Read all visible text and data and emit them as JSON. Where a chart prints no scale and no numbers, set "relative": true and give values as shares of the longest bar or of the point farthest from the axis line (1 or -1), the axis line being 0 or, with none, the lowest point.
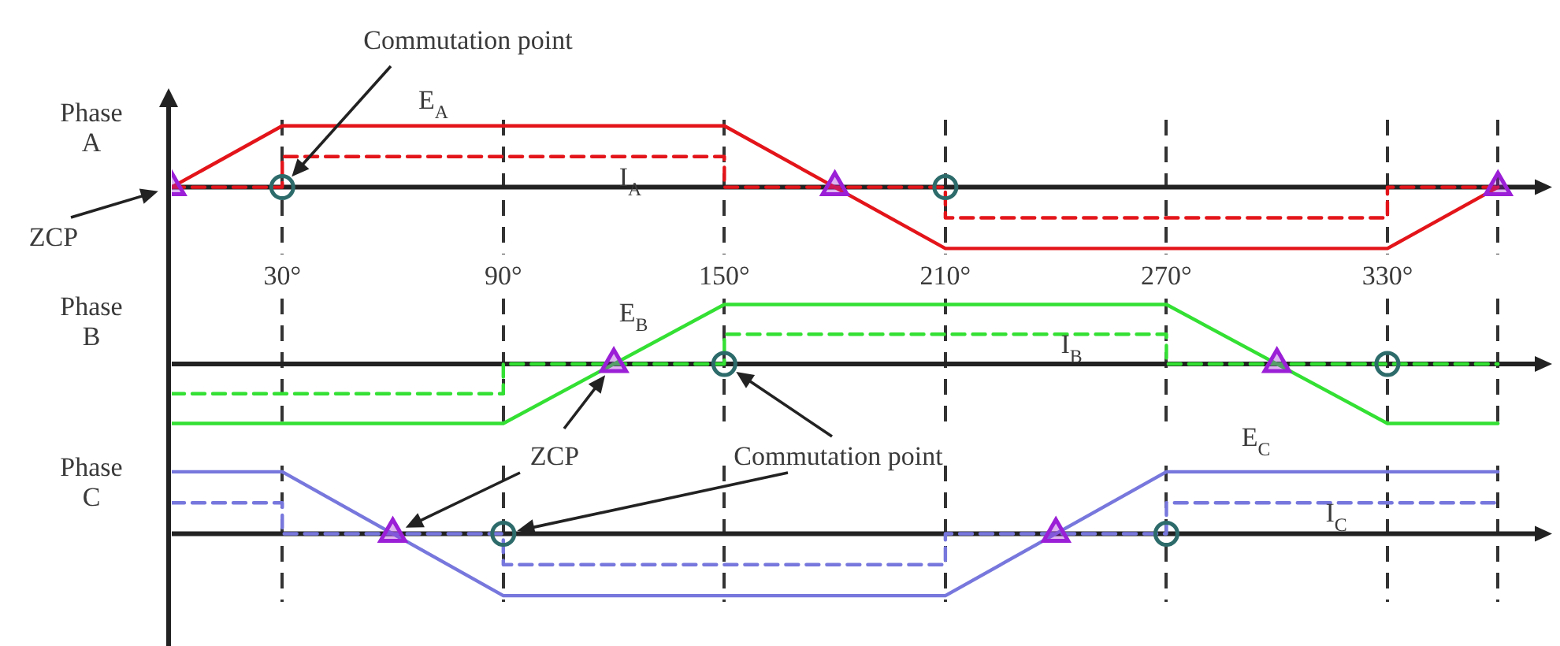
{
  "chart_data": [
    {
      "type": "line",
      "relative": true,
      "ylabel": "Phase A",
      "xlim": [
        0,
        370
      ],
      "xticks": [
        {
          "value": 30,
          "label": "30°"
        },
        {
          "value": 90,
          "label": "90°"
        },
        {
          "value": 150,
          "label": "150°"
        },
        {
          "value": 210,
          "label": "210°"
        },
        {
          "value": 270,
          "label": "270°"
        },
        {
          "value": 330,
          "label": "330°"
        },
        {
          "value": 360,
          "label": null
        }
      ],
      "grid": "x",
      "tick_labels": "x",
      "legend": false,
      "marker": "none",
      "series": [
        {
          "name": "E$_{A}$",
          "color": "#e3151a",
          "x": [
            0,
            30,
            150,
            210,
            330,
            360
          ],
          "values": [
            0,
            1,
            1,
            -1,
            -1,
            0
          ]
        },
        {
          "name": "I$_{A}$",
          "color": "#e3151a",
          "line_style": "dashed",
          "x": [
            0,
            30,
            30,
            150,
            150,
            210,
            210,
            330,
            330,
            360
          ],
          "values": [
            0,
            0,
            0.5,
            0.5,
            0,
            0,
            -0.5,
            -0.5,
            0,
            0
          ]
        },
        {
          "type": "scatter",
          "marker": "triangle",
          "color": "#9b1fd6",
          "x": [
            0,
            180,
            360
          ],
          "values": [
            0,
            0,
            0
          ]
        },
        {
          "type": "scatter",
          "marker": "circle",
          "color": "#2d6b6b",
          "x": [
            30,
            210
          ],
          "values": [
            0,
            0
          ]
        }
      ],
      "annotations": [
        "Commutation point",
        "ZCP"
      ]
    },
    {
      "type": "line",
      "relative": true,
      "ylabel": "Phase B",
      "xlim": [
        0,
        370
      ],
      "xticks": [
        {
          "value": 30,
          "label": null
        },
        {
          "value": 90,
          "label": null
        },
        {
          "value": 150,
          "label": null
        },
        {
          "value": 210,
          "label": null
        },
        {
          "value": 270,
          "label": null
        },
        {
          "value": 330,
          "label": null
        },
        {
          "value": 360,
          "label": null
        }
      ],
      "grid": "x",
      "tick_labels": false,
      "legend": false,
      "marker": "none",
      "series": [
        {
          "name": "E$_{B}$",
          "color": "#33e033",
          "x": [
            0,
            90,
            150,
            270,
            330,
            360
          ],
          "values": [
            -1,
            -1,
            1,
            1,
            -1,
            -1
          ]
        },
        {
          "name": "I$_{B}$",
          "color": "#33e033",
          "line_style": "dashed",
          "x": [
            0,
            90,
            90,
            150,
            150,
            270,
            270,
            360
          ],
          "values": [
            -0.5,
            -0.5,
            0,
            0,
            0.5,
            0.5,
            0,
            0
          ]
        },
        {
          "type": "scatter",
          "marker": "triangle",
          "color": "#9b1fd6",
          "x": [
            120,
            300
          ],
          "values": [
            0,
            0
          ]
        },
        {
          "type": "scatter",
          "marker": "circle",
          "color": "#2d6b6b",
          "x": [
            150,
            330
          ],
          "values": [
            0,
            0
          ]
        }
      ]
    },
    {
      "type": "line",
      "relative": true,
      "ylabel": "Phase C",
      "xlim": [
        0,
        370
      ],
      "xticks": [
        {
          "value": 30,
          "label": null
        },
        {
          "value": 90,
          "label": null
        },
        {
          "value": 150,
          "label": null
        },
        {
          "value": 210,
          "label": null
        },
        {
          "value": 270,
          "label": null
        },
        {
          "value": 330,
          "label": null
        },
        {
          "value": 360,
          "label": null
        }
      ],
      "grid": "x",
      "tick_labels": false,
      "legend": false,
      "marker": "none",
      "series": [
        {
          "name": "E$_{C}$",
          "color": "#7777dd",
          "x": [
            0,
            30,
            90,
            210,
            270,
            360
          ],
          "values": [
            1,
            1,
            -1,
            -1,
            1,
            1
          ]
        },
        {
          "name": "I$_{C}$",
          "color": "#7777dd",
          "line_style": "dashed",
          "x": [
            0,
            30,
            30,
            90,
            90,
            210,
            210,
            270,
            270,
            360
          ],
          "values": [
            0.5,
            0.5,
            0,
            0,
            -0.5,
            -0.5,
            0,
            0,
            0.5,
            0.5
          ]
        },
        {
          "type": "scatter",
          "marker": "triangle",
          "color": "#9b1fd6",
          "x": [
            60,
            240
          ],
          "values": [
            0,
            0
          ]
        },
        {
          "type": "scatter",
          "marker": "circle",
          "color": "#2d6b6b",
          "x": [
            90,
            270
          ],
          "values": [
            0,
            0
          ]
        }
      ],
      "annotations": [
        "ZCP",
        "Commutation point"
      ]
    }
  ]
}
